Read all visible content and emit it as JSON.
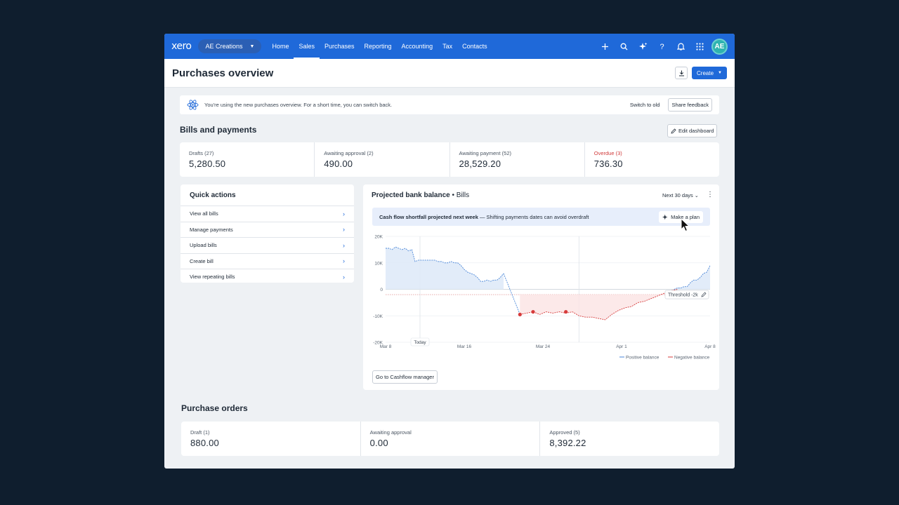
{
  "nav": {
    "logo": "xero",
    "org": "AE Creations",
    "items": [
      "Home",
      "Sales",
      "Purchases",
      "Reporting",
      "Accounting",
      "Tax",
      "Contacts"
    ],
    "active": "Sales",
    "avatar": "AE"
  },
  "header": {
    "title": "Purchases overview",
    "create_label": "Create"
  },
  "banner": {
    "text": "You're using the new purchases overview. For a short time, you can switch back.",
    "switch_label": "Switch to old",
    "feedback_label": "Share feedback"
  },
  "bills": {
    "title": "Bills and payments",
    "edit_label": "Edit dashboard",
    "stats": [
      {
        "label": "Drafts (27)",
        "value": "5,280.50"
      },
      {
        "label": "Awaiting approval (2)",
        "value": "490.00"
      },
      {
        "label": "Awaiting payment (52)",
        "value": "28,529.20"
      },
      {
        "label": "Overdue (3)",
        "value": "736.30"
      }
    ]
  },
  "quick_actions": {
    "title": "Quick actions",
    "items": [
      "View all bills",
      "Manage payments",
      "Upload bills",
      "Create bill",
      "View repeating bills"
    ]
  },
  "projection": {
    "title": "Projected bank balance",
    "subtitle": "Bills",
    "range": "Next 30 days",
    "alert_bold": "Cash flow shortfall projected next week",
    "alert_rest": " — Shifting payments dates can avoid overdraft",
    "plan_label": "Make a plan",
    "today_label": "Today",
    "threshold_label": "Threshold -2k",
    "cashflow_label": "Go to Cashflow manager"
  },
  "chart_data": {
    "type": "line",
    "yticks": [
      "20K",
      "10K",
      "0",
      "-10K",
      "-20K"
    ],
    "ylim": [
      -20000,
      20000
    ],
    "xticks": [
      "Mar 8",
      "Mar 16",
      "Mar 24",
      "Apr 1",
      "Apr 8"
    ],
    "threshold": -2000,
    "legend": [
      "Positive balance",
      "Negative balance"
    ],
    "series": [
      {
        "name": "Positive balance",
        "x": [
          0,
          1,
          2,
          3,
          4,
          5,
          6,
          7,
          8,
          9,
          10,
          11,
          12,
          13,
          14,
          15,
          16,
          17,
          18,
          19,
          20,
          21,
          22,
          23,
          24,
          25,
          26,
          27,
          28,
          29,
          30,
          31,
          32,
          33,
          34,
          35,
          36,
          37,
          38,
          39,
          40,
          41,
          42,
          43,
          44,
          45,
          46,
          47,
          48,
          49,
          50,
          51,
          52,
          53,
          54,
          55,
          56,
          57,
          58,
          59,
          60,
          61,
          62,
          63,
          64,
          65,
          66,
          67,
          68,
          69,
          70,
          71,
          72,
          73,
          74,
          75,
          76,
          77,
          78,
          79,
          80,
          81,
          82,
          83,
          84,
          85,
          86,
          87,
          88,
          89,
          90,
          91,
          92,
          93,
          94,
          95,
          96,
          97,
          98,
          99
        ],
        "y": [
          15500,
          15500,
          15000,
          16000,
          15500,
          15000,
          15500,
          14500,
          15000,
          10500,
          11000,
          11000,
          11000,
          11000,
          11000,
          11000,
          10500,
          10500,
          10000,
          10000,
          10500,
          10000,
          10000,
          9000,
          7500,
          6500,
          6000,
          5500,
          4500,
          3000,
          3000,
          3500,
          3000,
          3500,
          3500,
          4500,
          6000,
          null,
          null,
          null,
          null,
          null,
          null,
          null,
          null,
          null,
          null,
          null,
          null,
          null,
          null,
          null,
          null,
          null,
          null,
          null,
          null,
          null,
          null,
          null,
          null,
          null,
          null,
          null,
          null,
          null,
          null,
          null,
          null,
          null,
          null,
          null,
          null,
          null,
          null,
          null,
          null,
          null,
          null,
          null,
          null,
          null,
          null,
          null,
          null,
          null,
          null,
          null,
          0,
          500,
          500,
          1000,
          1000,
          2500,
          3500,
          3500,
          4500,
          6000,
          6500,
          9000
        ]
      },
      {
        "name": "Negative balance",
        "x": [
          41,
          43,
          45,
          47,
          49,
          51,
          53,
          55,
          57,
          59,
          61,
          63,
          65,
          67,
          69,
          71,
          73,
          75,
          77,
          79,
          81,
          83,
          85,
          87,
          89
        ],
        "y": [
          -9500,
          -9000,
          -8500,
          -9500,
          -8500,
          -9000,
          -8500,
          -9000,
          -8500,
          -10000,
          -10500,
          -10500,
          -11000,
          -11500,
          -9500,
          -8000,
          -7000,
          -6500,
          -5000,
          -4500,
          -3500,
          -2500,
          -1500,
          -500,
          0
        ]
      }
    ]
  }
}
